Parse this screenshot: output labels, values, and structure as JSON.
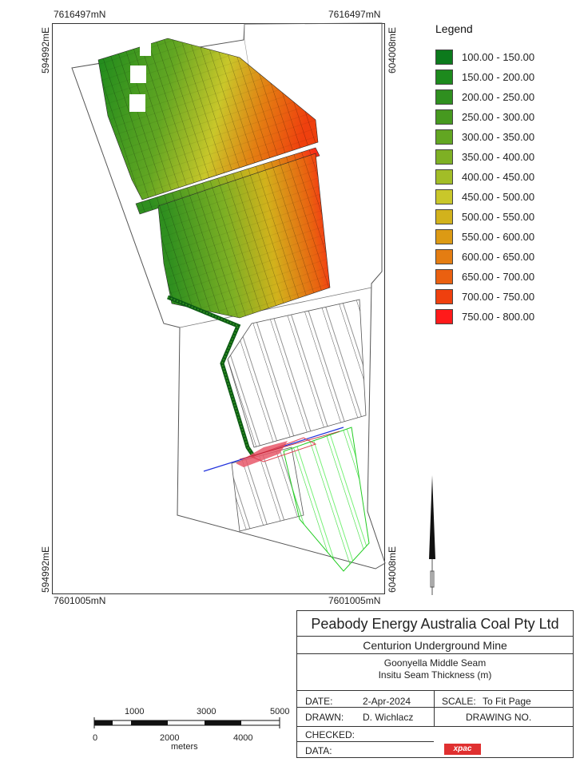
{
  "coords": {
    "top_left_north": "7616497mN",
    "top_right_north": "7616497mN",
    "bottom_left_north": "7601005mN",
    "bottom_right_north": "7601005mN",
    "left_top_east": "594992mE",
    "left_bottom_east": "594992mE",
    "right_top_east": "604008mE",
    "right_bottom_east": "604008mE"
  },
  "legend": {
    "title": "Legend",
    "items": [
      {
        "label": "100.00 - 150.00",
        "color": "#0c7a1c"
      },
      {
        "label": "150.00 - 200.00",
        "color": "#1d8a1d"
      },
      {
        "label": "200.00 - 250.00",
        "color": "#2f8f1f"
      },
      {
        "label": "250.00 - 300.00",
        "color": "#46991f"
      },
      {
        "label": "300.00 - 350.00",
        "color": "#62a622"
      },
      {
        "label": "350.00 - 400.00",
        "color": "#7eb024"
      },
      {
        "label": "400.00 - 450.00",
        "color": "#a2bd27"
      },
      {
        "label": "450.00 - 500.00",
        "color": "#c9c72a"
      },
      {
        "label": "500.00 - 550.00",
        "color": "#d2b21c"
      },
      {
        "label": "550.00 - 600.00",
        "color": "#dc9a14"
      },
      {
        "label": "600.00 - 650.00",
        "color": "#e47d12"
      },
      {
        "label": "650.00 - 700.00",
        "color": "#ea6010"
      },
      {
        "label": "700.00 - 750.00",
        "color": "#ef400e"
      },
      {
        "label": "750.00 - 800.00",
        "color": "#ff1a1a"
      }
    ]
  },
  "title_block": {
    "company": "Peabody Energy Australia Coal Pty Ltd",
    "mine": "Centurion Underground Mine",
    "seam": "Goonyella Middle Seam",
    "subject": "Insitu Seam Thickness (m)",
    "date_label": "DATE:",
    "date_value": "2-Apr-2024",
    "scale_label": "SCALE:",
    "scale_value": "To Fit Page",
    "drawn_label": "DRAWN:",
    "drawn_value": "D. Wichlacz",
    "drawing_no_label": "DRAWING NO.",
    "checked_label": "CHECKED:",
    "data_label": "DATA:",
    "logo_text": "xpac"
  },
  "scale_bar": {
    "top_labels": [
      "1000",
      "3000",
      "5000"
    ],
    "bottom_labels": [
      "0",
      "2000",
      "4000"
    ],
    "units": "meters"
  }
}
